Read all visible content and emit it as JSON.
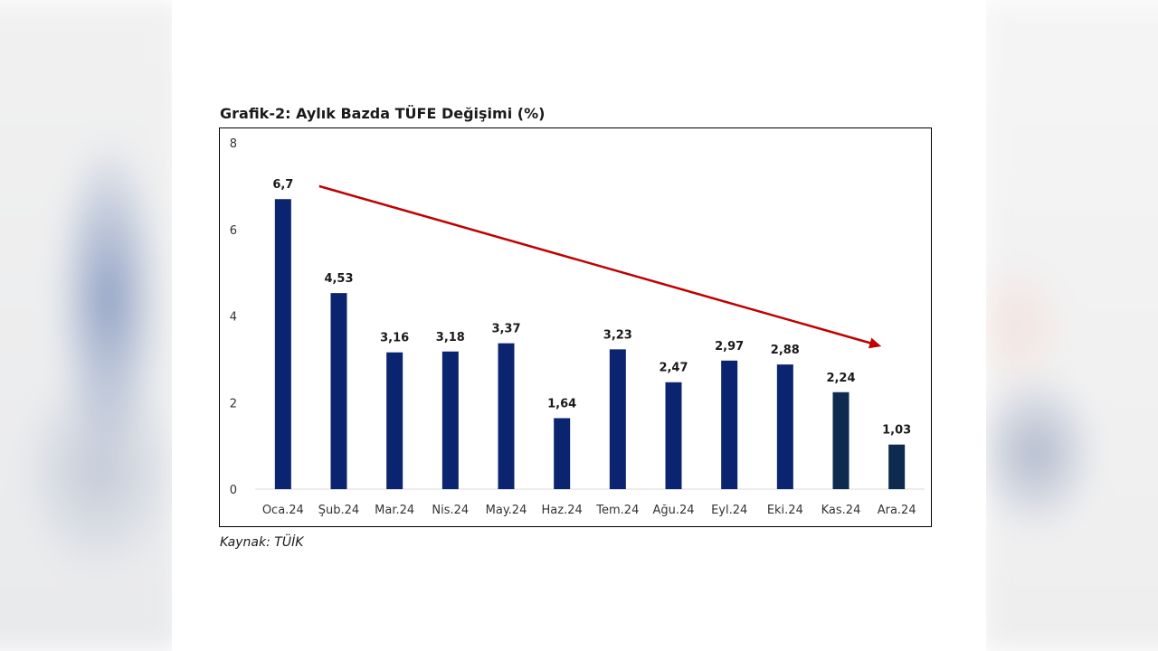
{
  "title": "Grafik-2: Aylık Bazda TÜFE Değişimi (%)",
  "source": "Kaynak: TÜİK",
  "chart_data": {
    "type": "bar",
    "categories": [
      "Oca.24",
      "Şub.24",
      "Mar.24",
      "Nis.24",
      "May.24",
      "Haz.24",
      "Tem.24",
      "Ağu.24",
      "Eyl.24",
      "Eki.24",
      "Kas.24",
      "Ara.24"
    ],
    "values": [
      6.7,
      4.53,
      3.16,
      3.18,
      3.37,
      1.64,
      3.23,
      2.47,
      2.97,
      2.88,
      2.24,
      1.03
    ],
    "data_labels": [
      "6,7",
      "4,53",
      "3,16",
      "3,18",
      "3,37",
      "1,64",
      "3,23",
      "2,47",
      "2,97",
      "2,88",
      "2,24",
      "1,03"
    ],
    "yticks": [
      "0",
      "2",
      "4",
      "6",
      "8"
    ],
    "ylim": [
      0,
      8
    ],
    "grid": false,
    "bar_colors": [
      "#0b2470",
      "#0b2470",
      "#0b2470",
      "#0b2470",
      "#0b2470",
      "#0b2470",
      "#0b2470",
      "#0b2470",
      "#0b2470",
      "#0b2470",
      "#0f2a4f",
      "#0f2a4f"
    ],
    "annotation": {
      "type": "arrow",
      "color": "#c00000",
      "from": {
        "x": "Oca.24",
        "y": 7.0
      },
      "to": {
        "x": "Ara.24",
        "y": 3.3
      }
    }
  }
}
